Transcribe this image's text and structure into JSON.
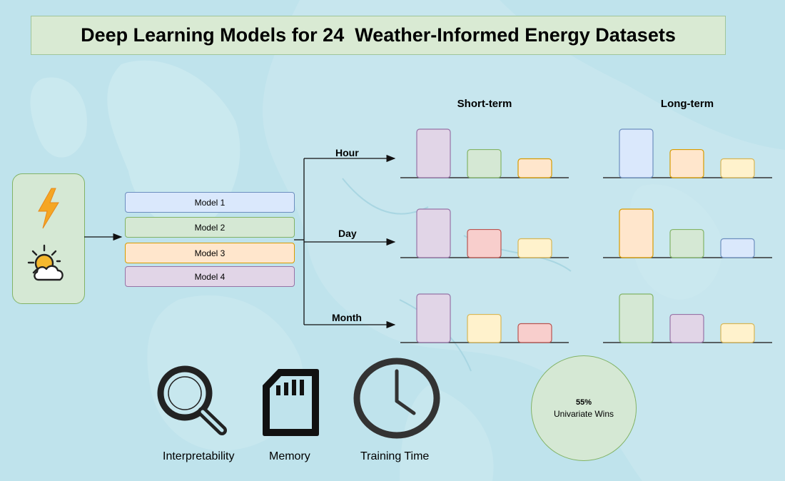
{
  "title": "Deep Learning Models for 24  Weather-Informed Energy Datasets",
  "models": [
    {
      "label": "Model 1",
      "fill": "#dae8fc",
      "stroke": "#6c8ebf"
    },
    {
      "label": "Model 2",
      "fill": "#d5e8d4",
      "stroke": "#82b366"
    },
    {
      "label": "Model 3",
      "fill": "#ffe6cc",
      "stroke": "#d79b00"
    },
    {
      "label": "Model 4",
      "fill": "#e1d5e7",
      "stroke": "#9673a6"
    }
  ],
  "palette": {
    "red": {
      "fill": "#f8cecc",
      "stroke": "#b85450"
    },
    "yellow": {
      "fill": "#fff2cc",
      "stroke": "#d6b656"
    }
  },
  "horizons": {
    "short": "Short-term",
    "long": "Long-term"
  },
  "resolutions": [
    "Hour",
    "Day",
    "Month"
  ],
  "bar_groups": {
    "short": [
      [
        {
          "color": "purple",
          "value": 1.0
        },
        {
          "color": "green",
          "value": 0.58
        },
        {
          "color": "orange",
          "value": 0.39
        }
      ],
      [
        {
          "color": "purple",
          "value": 1.0
        },
        {
          "color": "red",
          "value": 0.58
        },
        {
          "color": "yellow",
          "value": 0.39
        }
      ],
      [
        {
          "color": "purple",
          "value": 1.0
        },
        {
          "color": "yellow",
          "value": 0.58
        },
        {
          "color": "red",
          "value": 0.39
        }
      ]
    ],
    "long": [
      [
        {
          "color": "blue",
          "value": 1.0
        },
        {
          "color": "orange",
          "value": 0.58
        },
        {
          "color": "yellow",
          "value": 0.39
        }
      ],
      [
        {
          "color": "orange",
          "value": 1.0
        },
        {
          "color": "green",
          "value": 0.58
        },
        {
          "color": "blue",
          "value": 0.39
        }
      ],
      [
        {
          "color": "green",
          "value": 1.0
        },
        {
          "color": "purple",
          "value": 0.58
        },
        {
          "color": "yellow",
          "value": 0.39
        }
      ]
    ]
  },
  "colors": {
    "blue": {
      "fill": "#dae8fc",
      "stroke": "#6c8ebf"
    },
    "green": {
      "fill": "#d5e8d4",
      "stroke": "#82b366"
    },
    "orange": {
      "fill": "#ffe6cc",
      "stroke": "#d79b00"
    },
    "purple": {
      "fill": "#e1d5e7",
      "stroke": "#9673a6"
    },
    "red": {
      "fill": "#f8cecc",
      "stroke": "#b85450"
    },
    "yellow": {
      "fill": "#fff2cc",
      "stroke": "#d6b656"
    }
  },
  "icons": [
    "lightning-icon",
    "weather-icon",
    "magnifier-icon",
    "sd-card-icon",
    "clock-icon"
  ],
  "criteria": [
    "Interpretability",
    "Memory",
    "Training Time"
  ],
  "wins": {
    "percent": "55%",
    "label": "Univariate Wins"
  }
}
